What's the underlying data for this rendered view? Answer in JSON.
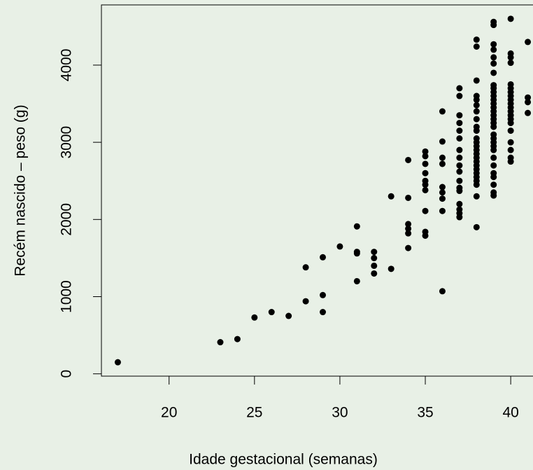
{
  "chart_data": {
    "type": "scatter",
    "x_label": "Idade gestacional (semanas)",
    "y_label": "Recém nascido – peso (g)",
    "color": "#000000",
    "xlim": [
      16.04,
      41.96
    ],
    "xticks": [
      20,
      25,
      30,
      35,
      40
    ],
    "ylim": [
      -30,
      4780
    ],
    "yticks": [
      0,
      1000,
      2000,
      3000,
      4000
    ],
    "x": [
      17,
      23,
      24,
      25,
      26,
      27,
      28,
      28,
      29,
      29,
      29,
      30,
      31,
      31,
      31,
      31,
      32,
      32,
      32,
      32,
      33,
      33,
      34,
      34,
      34,
      34,
      34,
      34,
      35,
      35,
      35,
      35,
      35,
      35,
      35,
      35,
      35,
      35,
      36,
      36,
      36,
      36,
      36,
      36,
      36,
      36,
      36,
      37,
      37,
      37,
      37,
      37,
      37,
      37,
      37,
      37,
      37,
      37,
      37,
      37,
      37,
      37,
      37,
      37,
      38,
      38,
      38,
      38,
      38,
      38,
      38,
      38,
      38,
      38,
      38,
      38,
      38,
      38,
      38,
      38,
      38,
      38,
      38,
      38,
      38,
      38,
      38,
      38,
      38,
      39,
      39,
      39,
      39,
      39,
      39,
      39,
      39,
      39,
      39,
      39,
      39,
      39,
      39,
      39,
      39,
      39,
      39,
      39,
      39,
      39,
      39,
      39,
      39,
      39,
      39,
      39,
      39,
      39,
      39,
      39,
      40,
      40,
      40,
      40,
      40,
      40,
      40,
      40,
      40,
      40,
      40,
      40,
      40,
      40,
      40,
      40,
      40,
      40,
      40,
      40,
      41,
      41,
      41,
      41
    ],
    "y": [
      150,
      410,
      450,
      730,
      800,
      750,
      1380,
      940,
      1510,
      1020,
      800,
      1650,
      1910,
      1580,
      1560,
      1200,
      1580,
      1500,
      1400,
      1300,
      2300,
      1360,
      2770,
      2280,
      1940,
      1880,
      1820,
      1630,
      2880,
      2820,
      2720,
      2600,
      2500,
      2450,
      2380,
      2110,
      1840,
      1790,
      3400,
      3010,
      2800,
      2720,
      2420,
      2350,
      2270,
      2110,
      1070,
      3700,
      3600,
      3350,
      3250,
      3150,
      3050,
      2900,
      2800,
      2700,
      2620,
      2500,
      2410,
      2370,
      2200,
      2130,
      2080,
      2030,
      4330,
      4240,
      3800,
      3600,
      3550,
      3480,
      3400,
      3300,
      3200,
      3150,
      3050,
      3000,
      2950,
      2900,
      2850,
      2800,
      2750,
      2700,
      2650,
      2600,
      2550,
      2500,
      2450,
      2300,
      1900,
      4560,
      4520,
      4270,
      4200,
      4100,
      4020,
      3900,
      3740,
      3700,
      3650,
      3600,
      3550,
      3500,
      3450,
      3400,
      3350,
      3300,
      3250,
      3200,
      3100,
      3050,
      3000,
      2950,
      2900,
      2800,
      2700,
      2600,
      2550,
      2450,
      2350,
      2310,
      4600,
      4150,
      4100,
      4030,
      3750,
      3700,
      3650,
      3600,
      3550,
      3500,
      3450,
      3400,
      3350,
      3300,
      3250,
      3150,
      3000,
      2900,
      2800,
      2750,
      4300,
      3580,
      3520,
      3380
    ]
  }
}
